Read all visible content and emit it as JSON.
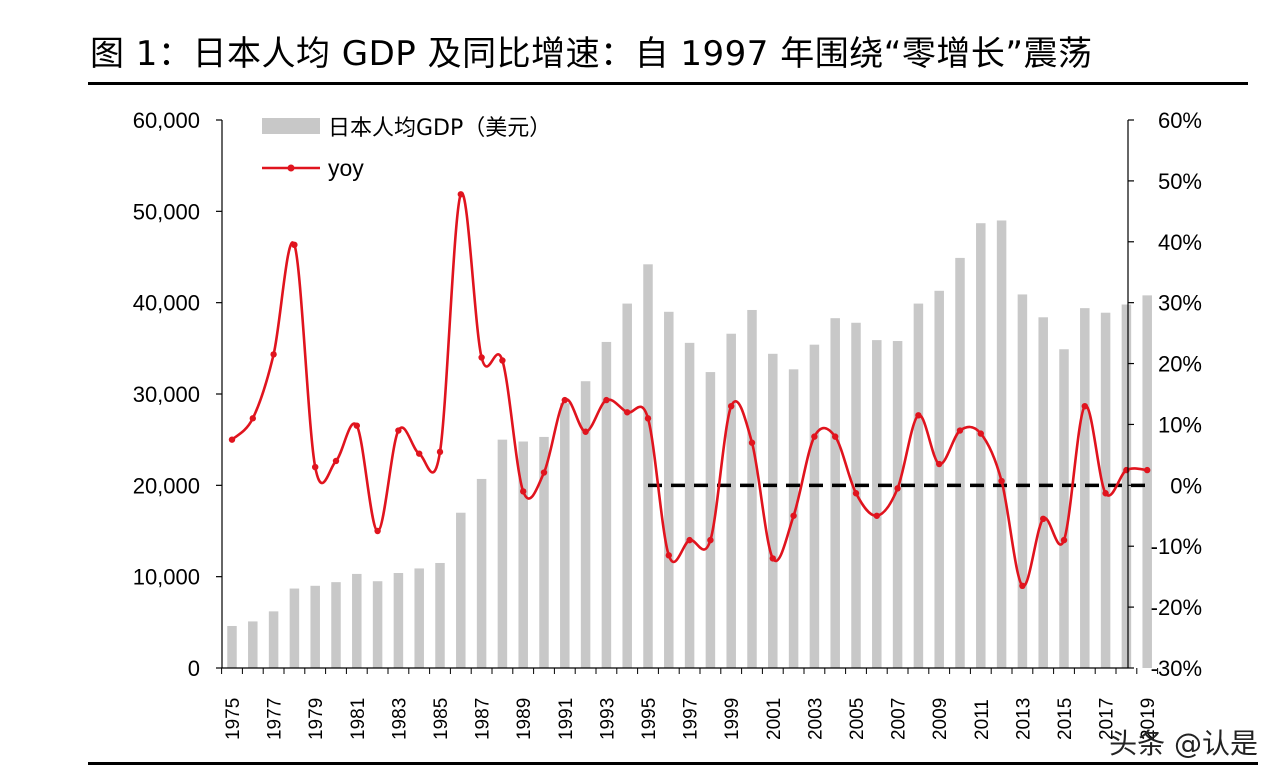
{
  "title": "图  1：日本人均 GDP 及同比增速：自 1997 年围绕“零增长”震荡",
  "watermark": "头条 @认是",
  "colors": {
    "bar": "#c8c8c8",
    "line": "#e0141e",
    "dash": "#000000",
    "axis": "#000000"
  },
  "chart_data": {
    "type": "bar+line",
    "title": "图  1：日本人均 GDP 及同比增速：自 1997 年围绕“零增长”震荡",
    "categories": [
      "1975",
      "1976",
      "1977",
      "1978",
      "1979",
      "1980",
      "1981",
      "1982",
      "1983",
      "1984",
      "1985",
      "1986",
      "1987",
      "1988",
      "1989",
      "1990",
      "1991",
      "1992",
      "1993",
      "1994",
      "1995",
      "1996",
      "1997",
      "1998",
      "1999",
      "2000",
      "2001",
      "2002",
      "2003",
      "2004",
      "2005",
      "2006",
      "2007",
      "2008",
      "2009",
      "2010",
      "2011",
      "2012",
      "2013",
      "2014",
      "2015",
      "2016",
      "2017",
      "2018",
      "2019"
    ],
    "x_tick_labels": [
      "1975",
      "1977",
      "1979",
      "1981",
      "1983",
      "1985",
      "1987",
      "1989",
      "1991",
      "1993",
      "1995",
      "1997",
      "1999",
      "2001",
      "2003",
      "2005",
      "2007",
      "2009",
      "2011",
      "2013",
      "2015",
      "2017",
      "2019"
    ],
    "series": [
      {
        "name": "日本人均GDP（美元）",
        "type": "bar",
        "axis": "left",
        "values": [
          4600,
          5100,
          6200,
          8700,
          9000,
          9400,
          10300,
          9500,
          10400,
          10900,
          11500,
          17000,
          20700,
          25000,
          24800,
          25300,
          29000,
          31400,
          35700,
          39900,
          44200,
          39000,
          35600,
          32400,
          36600,
          39200,
          34400,
          32700,
          35400,
          38300,
          37800,
          35900,
          35800,
          39900,
          41300,
          44900,
          48700,
          49000,
          40900,
          38400,
          34900,
          39400,
          38900,
          39800,
          40800
        ]
      },
      {
        "name": "yoy",
        "type": "line",
        "axis": "right",
        "unit": "%",
        "values": [
          7.5,
          11,
          21.5,
          39.5,
          3,
          4,
          9.8,
          -7.5,
          9,
          5.2,
          5.5,
          47.8,
          21,
          20.5,
          -1,
          2.1,
          14,
          8.8,
          14,
          12,
          11,
          -11.5,
          -9,
          -9,
          13,
          7,
          -12,
          -5,
          8,
          8,
          -1.3,
          -5,
          -0.5,
          11.5,
          3.5,
          9,
          8.5,
          0.7,
          -16.5,
          -5.5,
          -9,
          13,
          -1.3,
          2.5,
          2.5
        ]
      }
    ],
    "reference_line": {
      "axis": "right",
      "value": 0,
      "from": "1995",
      "to": "2019",
      "style": "dashed"
    },
    "left_axis": {
      "ylim": [
        0,
        60000
      ],
      "ticks": [
        0,
        10000,
        20000,
        30000,
        40000,
        50000,
        60000
      ],
      "tick_labels": [
        "0",
        "10,000",
        "20,000",
        "30,000",
        "40,000",
        "50,000",
        "60,000"
      ]
    },
    "right_axis": {
      "ylim": [
        -30,
        60
      ],
      "ticks": [
        -30,
        -20,
        -10,
        0,
        10,
        20,
        30,
        40,
        50,
        60
      ],
      "tick_labels": [
        "-30%",
        "-20%",
        "-10%",
        "0%",
        "10%",
        "20%",
        "30%",
        "40%",
        "50%",
        "60%"
      ]
    },
    "legend": {
      "placement": "top-left",
      "items": [
        {
          "label": "日本人均GDP（美元）",
          "kind": "bar"
        },
        {
          "label": "yoy",
          "kind": "line"
        }
      ]
    },
    "xlabel": "",
    "ylabel": "",
    "grid": false
  }
}
